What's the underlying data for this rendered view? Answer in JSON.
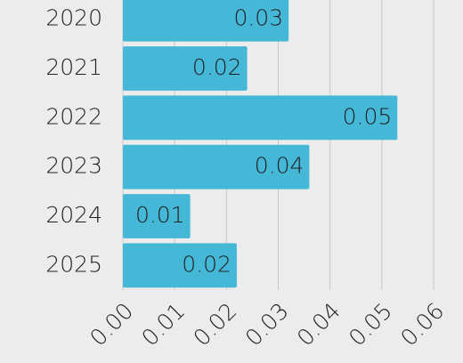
{
  "chart_data": {
    "type": "bar",
    "orientation": "horizontal",
    "categories": [
      "2020",
      "2021",
      "2022",
      "2023",
      "2024",
      "2025"
    ],
    "values": [
      0.032,
      0.024,
      0.053,
      0.036,
      0.013,
      0.022
    ],
    "value_labels": [
      "0.03",
      "0.02",
      "0.05",
      "0.04",
      "0.01",
      "0.02"
    ],
    "color": "#45b8d8",
    "xlim": [
      0,
      0.06
    ],
    "xticks": [
      {
        "value": 0,
        "label": "0.00"
      },
      {
        "value": 0.01,
        "label": "0.01"
      },
      {
        "value": 0.02,
        "label": "0.02"
      },
      {
        "value": 0.03,
        "label": "0.03"
      },
      {
        "value": 0.04,
        "label": "0.04"
      },
      {
        "value": 0.05,
        "label": "0.05"
      },
      {
        "value": 0.06,
        "label": "0.06"
      }
    ],
    "grid": true
  }
}
